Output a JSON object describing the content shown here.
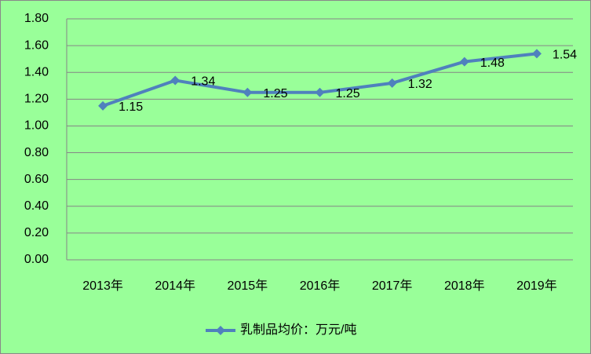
{
  "chart_data": {
    "type": "line",
    "categories": [
      "2013年",
      "2014年",
      "2015年",
      "2016年",
      "2017年",
      "2018年",
      "2019年"
    ],
    "series": [
      {
        "name": "乳制品均价：万元/吨",
        "color": "#4f81bd",
        "values": [
          1.15,
          1.34,
          1.25,
          1.25,
          1.32,
          1.48,
          1.54
        ]
      }
    ],
    "ylim": [
      0,
      1.8
    ],
    "yticks": [
      {
        "value": 0,
        "label": "0.00"
      },
      {
        "value": 0.2,
        "label": "0.20"
      },
      {
        "value": 0.4,
        "label": "0.40"
      },
      {
        "value": 0.6,
        "label": "0.60"
      },
      {
        "value": 0.8,
        "label": "0.80"
      },
      {
        "value": 1.0,
        "label": "1.00"
      },
      {
        "value": 1.2,
        "label": "1.20"
      },
      {
        "value": 1.4,
        "label": "1.40"
      },
      {
        "value": 1.6,
        "label": "1.60"
      },
      {
        "value": 1.8,
        "label": "1.80"
      }
    ],
    "grid": true,
    "legend": "bottom"
  }
}
